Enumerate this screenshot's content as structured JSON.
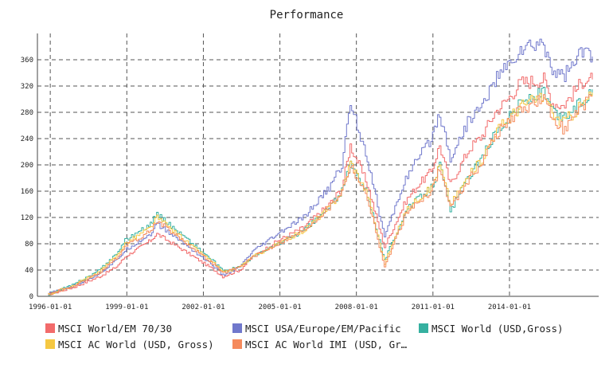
{
  "chart_data": {
    "type": "line",
    "title": "Performance",
    "xlabel": "",
    "ylabel": "",
    "x_ticks": [
      "1996-01-01",
      "1999-01-01",
      "2002-01-01",
      "2005-01-01",
      "2008-01-01",
      "2011-01-01",
      "2014-01-01"
    ],
    "y_ticks": [
      0,
      40,
      80,
      120,
      160,
      200,
      240,
      280,
      320,
      360
    ],
    "xlim": [
      "1995-07-01",
      "2017-07-01"
    ],
    "ylim": [
      0,
      400
    ],
    "grid": true,
    "legend_position": "bottom",
    "x": [
      "1995-12-01",
      "1996-12-01",
      "1997-12-01",
      "1998-08-01",
      "1998-12-01",
      "1999-12-01",
      "2000-03-01",
      "2001-06-01",
      "2002-06-01",
      "2002-10-01",
      "2003-06-01",
      "2003-12-01",
      "2004-12-01",
      "2005-12-01",
      "2006-12-01",
      "2007-06-01",
      "2007-10-01",
      "2008-06-01",
      "2009-02-01",
      "2009-12-01",
      "2010-06-01",
      "2010-12-01",
      "2011-04-01",
      "2011-09-01",
      "2012-06-01",
      "2012-12-01",
      "2013-06-01",
      "2013-12-01",
      "2014-06-01",
      "2015-05-01",
      "2015-09-01",
      "2016-02-01",
      "2016-12-01",
      "2017-04-01"
    ],
    "series": [
      {
        "name": "MSCI World/EM 70/30",
        "color": "#f26b6b",
        "values": [
          3,
          14,
          30,
          45,
          60,
          85,
          95,
          65,
          40,
          30,
          40,
          60,
          85,
          105,
          140,
          165,
          230,
          170,
          75,
          145,
          170,
          190,
          230,
          170,
          225,
          245,
          280,
          300,
          325,
          330,
          295,
          290,
          330,
          330
        ]
      },
      {
        "name": "MSCI USA/Europe/EM/Pacific",
        "color": "#7078cc",
        "values": [
          4,
          16,
          35,
          55,
          70,
          95,
          110,
          75,
          45,
          32,
          45,
          68,
          95,
          120,
          165,
          200,
          295,
          210,
          90,
          180,
          210,
          240,
          280,
          210,
          270,
          290,
          330,
          350,
          375,
          385,
          345,
          335,
          375,
          365
        ]
      },
      {
        "name": "MSCI World (USD,Gross)",
        "color": "#35b0a0",
        "values": [
          3,
          18,
          40,
          65,
          85,
          110,
          125,
          85,
          52,
          38,
          45,
          60,
          80,
          100,
          135,
          160,
          200,
          155,
          55,
          130,
          150,
          165,
          200,
          130,
          185,
          210,
          250,
          270,
          295,
          310,
          280,
          270,
          300,
          315
        ]
      },
      {
        "name": "MSCI AC World (USD, Gross)",
        "color": "#f5c842",
        "values": [
          3,
          17,
          38,
          62,
          80,
          105,
          120,
          80,
          50,
          36,
          45,
          60,
          80,
          100,
          135,
          160,
          205,
          155,
          50,
          130,
          150,
          165,
          200,
          140,
          185,
          210,
          250,
          270,
          290,
          305,
          275,
          265,
          295,
          310
        ]
      },
      {
        "name": "MSCI AC World IMI (USD, Gr…",
        "color": "#f58a5c",
        "values": [
          3,
          16,
          36,
          58,
          76,
          100,
          115,
          78,
          48,
          35,
          45,
          60,
          80,
          100,
          135,
          160,
          200,
          150,
          45,
          125,
          145,
          160,
          195,
          135,
          180,
          205,
          245,
          265,
          285,
          300,
          270,
          255,
          290,
          305
        ]
      }
    ]
  }
}
